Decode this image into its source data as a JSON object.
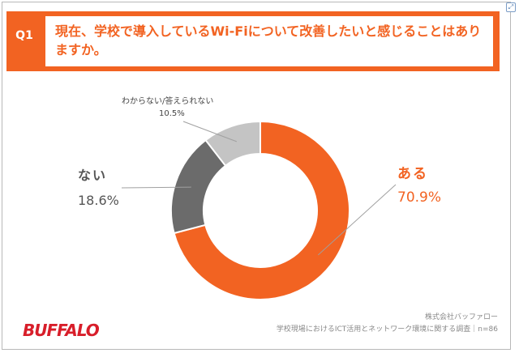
{
  "question": {
    "label": "Q1",
    "text": "現在、学校で導入しているWi-Fiについて改善したいと感じることはありますか。"
  },
  "chart_data": {
    "type": "pie",
    "variant": "donut",
    "categories": [
      "ある",
      "ない",
      "わからない/答えられない"
    ],
    "values": [
      70.9,
      18.6,
      10.5
    ],
    "value_labels": [
      "70.9%",
      "18.6%",
      "10.5%"
    ],
    "colors": [
      "#f26322",
      "#6b6b6b",
      "#c4c4c4"
    ],
    "title": "",
    "legend": "none"
  },
  "footer": {
    "company": "株式会社バッファロー",
    "survey": "学校現場におけるICT活用とネットワーク環境に関する調査｜n=86"
  },
  "logo": {
    "text": "BUFFALO",
    "color": "#d81e2a"
  }
}
